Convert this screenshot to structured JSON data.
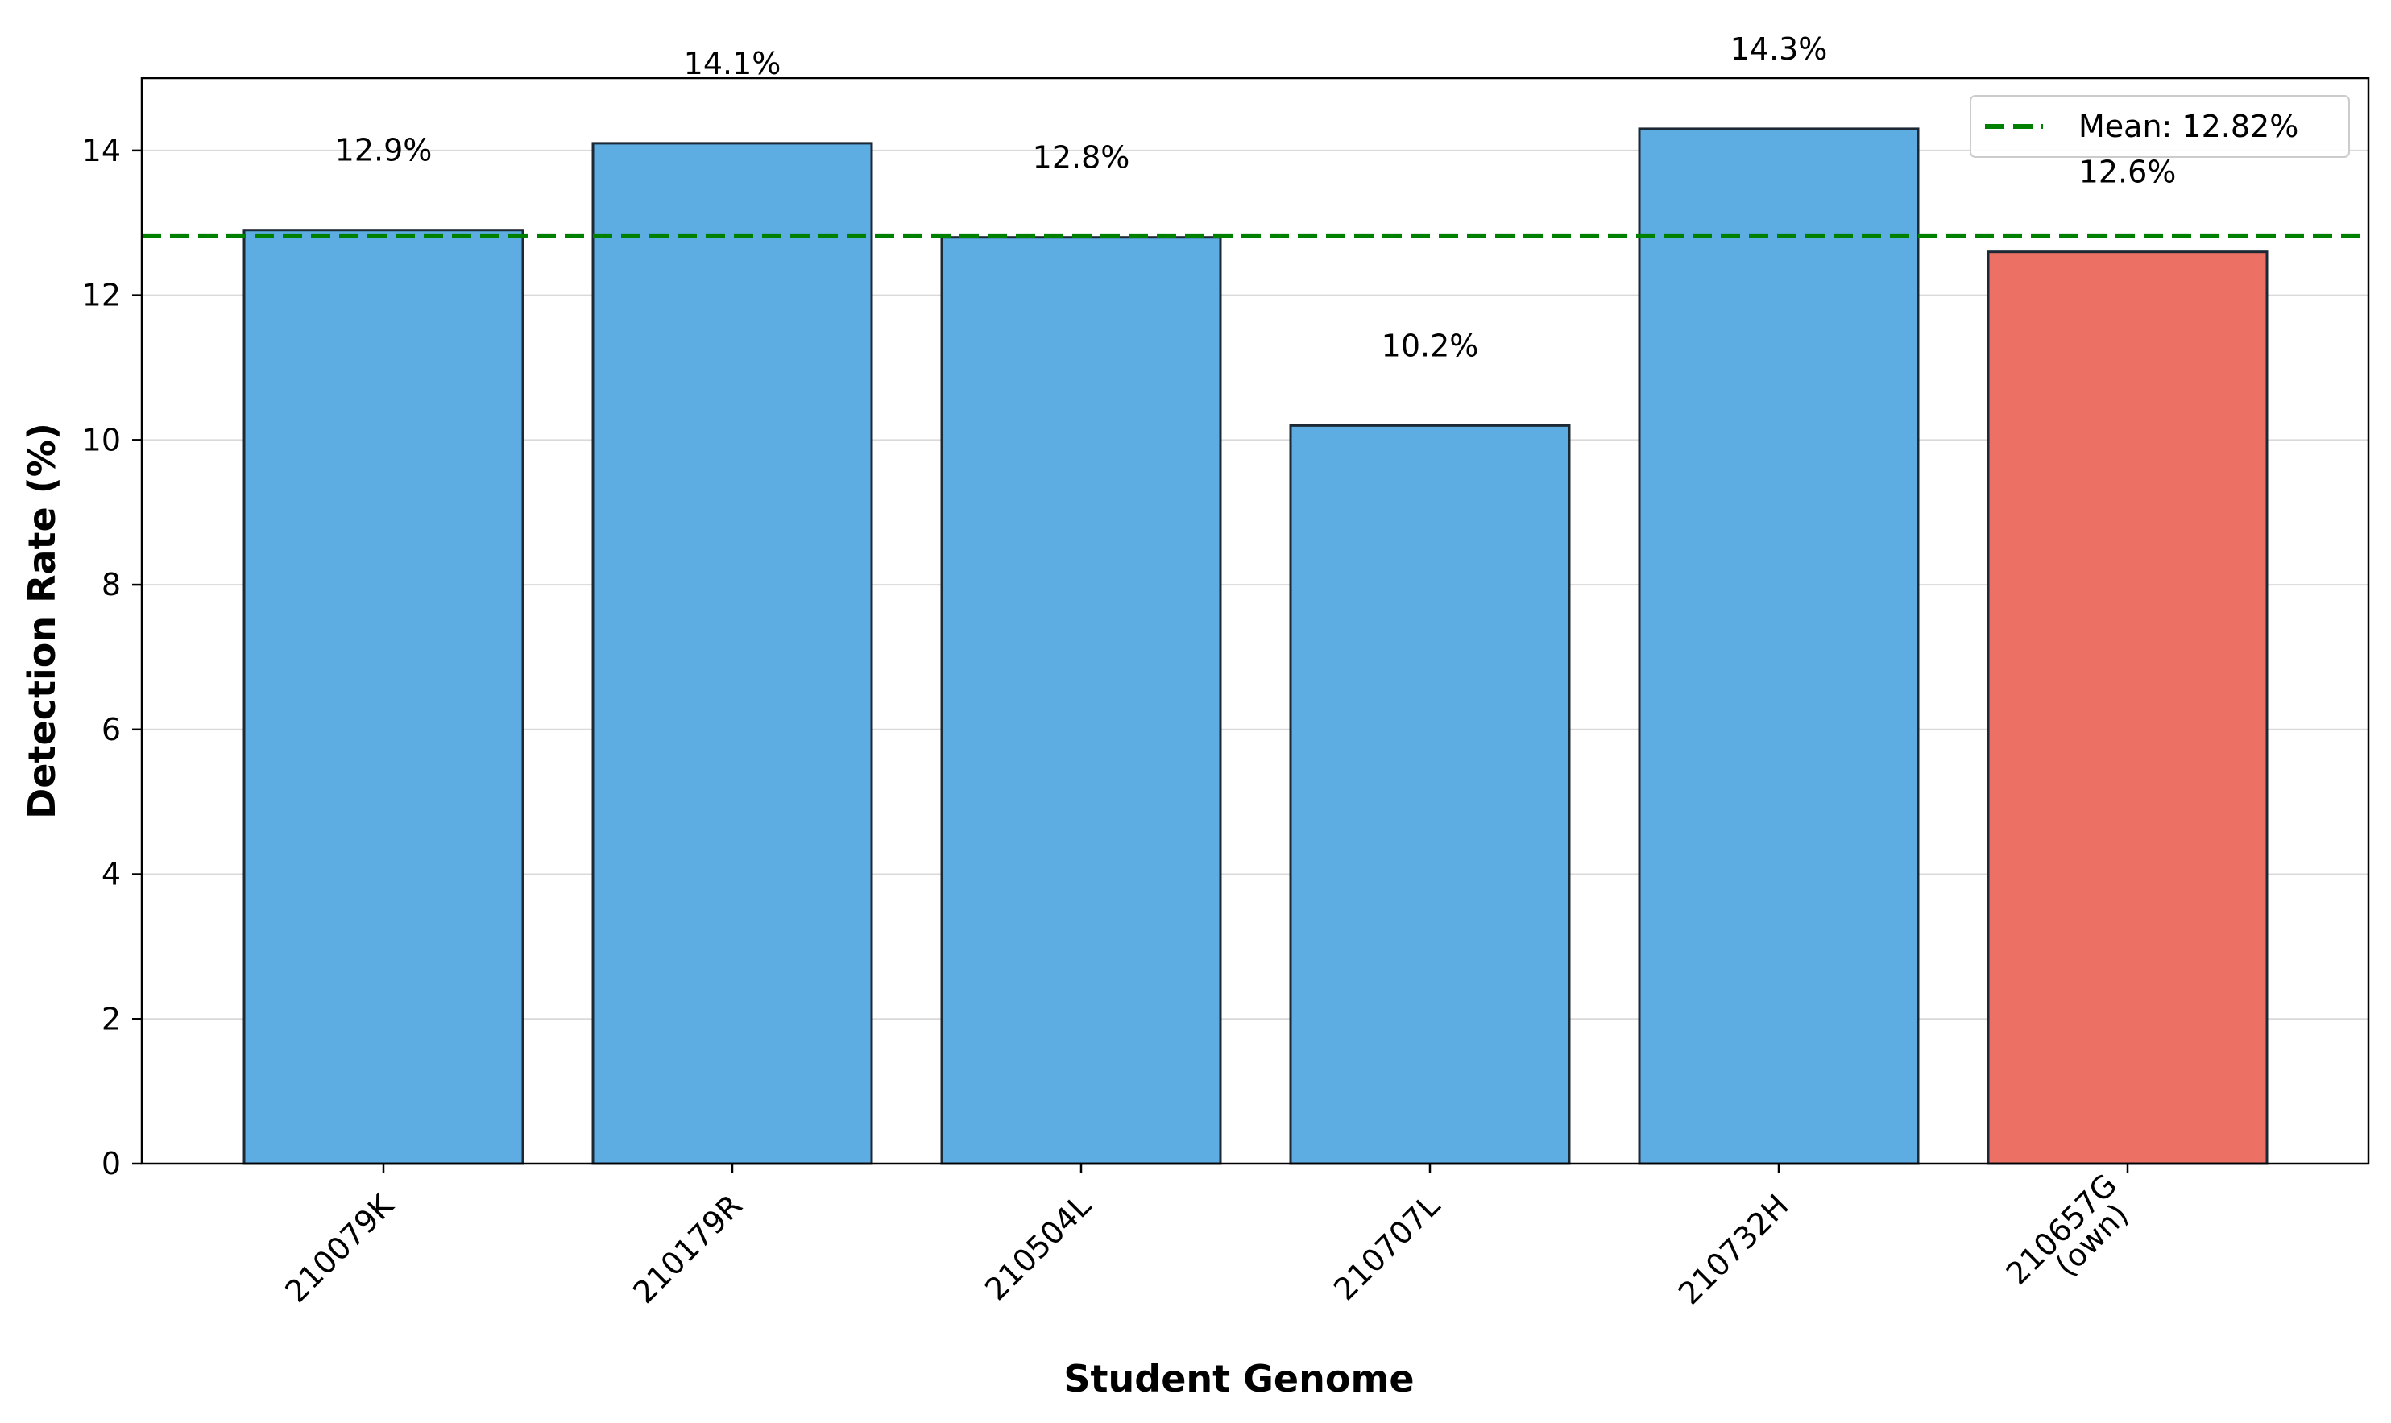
{
  "chart_data": {
    "type": "bar",
    "title": "",
    "xlabel": "Student Genome",
    "ylabel": "Detection Rate (%)",
    "categories": [
      [
        "210079K"
      ],
      [
        "210179R"
      ],
      [
        "210504L"
      ],
      [
        "210707L"
      ],
      [
        "210732H"
      ],
      [
        "210657G",
        "(own)"
      ]
    ],
    "values": [
      12.9,
      14.1,
      12.8,
      10.2,
      14.3,
      12.6
    ],
    "value_labels": [
      "12.9%",
      "14.1%",
      "12.8%",
      "10.2%",
      "14.3%",
      "12.6%"
    ],
    "bar_colors": [
      "#5dade2",
      "#5dade2",
      "#5dade2",
      "#5dade2",
      "#5dade2",
      "#ec7063"
    ],
    "bar_edge_color": "#1c2833",
    "ylim": [
      0,
      15
    ],
    "yticks": [
      0,
      2,
      4,
      6,
      8,
      10,
      12,
      14
    ],
    "grid": "y",
    "reference_line": {
      "value": 12.82,
      "label": "Mean: 12.82%",
      "color": "#008000",
      "style": "dashed"
    },
    "legend": {
      "position": "top-right",
      "entries": [
        "Mean: 12.82%"
      ]
    }
  }
}
